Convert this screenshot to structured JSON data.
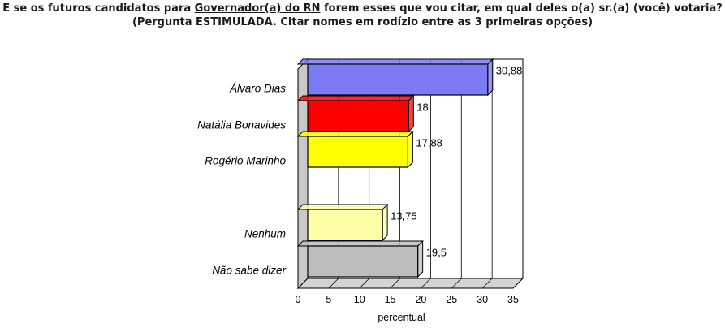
{
  "title": {
    "pre": "E se os futuros candidatos para ",
    "underlined": "Governador(a) do RN",
    "post": " forem esses que vou citar, em qual deles o(a) sr.(a) (você) votaria?",
    "line2": "(Pergunta ESTIMULADA. Citar nomes em rodízio entre as 3 primeiras opções)"
  },
  "chart_data": {
    "type": "bar",
    "orientation": "horizontal",
    "three_d": true,
    "categories": [
      "Álvaro Dias",
      "Natália Bonavides",
      "Rogério Marinho",
      "Nenhum",
      "Não sabe dizer"
    ],
    "values": [
      30.88,
      18,
      17.88,
      13.75,
      19.5
    ],
    "value_labels": [
      "30,88",
      "18",
      "17,88",
      "13,75",
      "19,5"
    ],
    "bar_colors": [
      "#7b7bf5",
      "#ff0000",
      "#ffff00",
      "#ffffa8",
      "#bdbdbd"
    ],
    "xlabel": "percentual",
    "ylabel": "",
    "xlim": [
      0,
      35
    ],
    "xticks": [
      "0",
      "5",
      "10",
      "15",
      "20",
      "25",
      "30",
      "35"
    ],
    "grid": true
  }
}
